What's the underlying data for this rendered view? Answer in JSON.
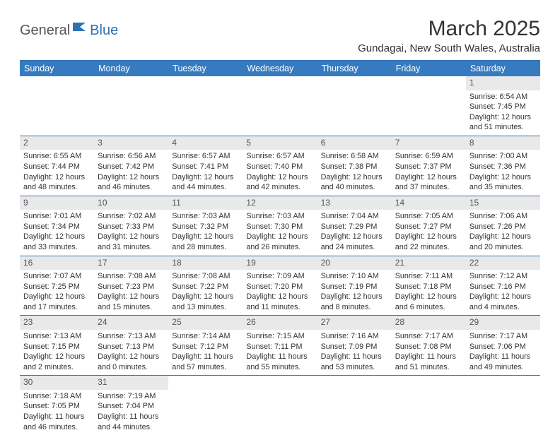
{
  "logo": {
    "general": "General",
    "blue": "Blue"
  },
  "title": "March 2025",
  "location": "Gundagai, New South Wales, Australia",
  "colors": {
    "header_bg": "#367bbf",
    "border": "#2d71b5",
    "daynum_bg": "#e9e9e9",
    "text": "#333333"
  },
  "daysOfWeek": [
    "Sunday",
    "Monday",
    "Tuesday",
    "Wednesday",
    "Thursday",
    "Friday",
    "Saturday"
  ],
  "weeks": [
    [
      null,
      null,
      null,
      null,
      null,
      null,
      {
        "n": "1",
        "sunrise": "Sunrise: 6:54 AM",
        "sunset": "Sunset: 7:45 PM",
        "day1": "Daylight: 12 hours",
        "day2": "and 51 minutes."
      }
    ],
    [
      {
        "n": "2",
        "sunrise": "Sunrise: 6:55 AM",
        "sunset": "Sunset: 7:44 PM",
        "day1": "Daylight: 12 hours",
        "day2": "and 48 minutes."
      },
      {
        "n": "3",
        "sunrise": "Sunrise: 6:56 AM",
        "sunset": "Sunset: 7:42 PM",
        "day1": "Daylight: 12 hours",
        "day2": "and 46 minutes."
      },
      {
        "n": "4",
        "sunrise": "Sunrise: 6:57 AM",
        "sunset": "Sunset: 7:41 PM",
        "day1": "Daylight: 12 hours",
        "day2": "and 44 minutes."
      },
      {
        "n": "5",
        "sunrise": "Sunrise: 6:57 AM",
        "sunset": "Sunset: 7:40 PM",
        "day1": "Daylight: 12 hours",
        "day2": "and 42 minutes."
      },
      {
        "n": "6",
        "sunrise": "Sunrise: 6:58 AM",
        "sunset": "Sunset: 7:38 PM",
        "day1": "Daylight: 12 hours",
        "day2": "and 40 minutes."
      },
      {
        "n": "7",
        "sunrise": "Sunrise: 6:59 AM",
        "sunset": "Sunset: 7:37 PM",
        "day1": "Daylight: 12 hours",
        "day2": "and 37 minutes."
      },
      {
        "n": "8",
        "sunrise": "Sunrise: 7:00 AM",
        "sunset": "Sunset: 7:36 PM",
        "day1": "Daylight: 12 hours",
        "day2": "and 35 minutes."
      }
    ],
    [
      {
        "n": "9",
        "sunrise": "Sunrise: 7:01 AM",
        "sunset": "Sunset: 7:34 PM",
        "day1": "Daylight: 12 hours",
        "day2": "and 33 minutes."
      },
      {
        "n": "10",
        "sunrise": "Sunrise: 7:02 AM",
        "sunset": "Sunset: 7:33 PM",
        "day1": "Daylight: 12 hours",
        "day2": "and 31 minutes."
      },
      {
        "n": "11",
        "sunrise": "Sunrise: 7:03 AM",
        "sunset": "Sunset: 7:32 PM",
        "day1": "Daylight: 12 hours",
        "day2": "and 28 minutes."
      },
      {
        "n": "12",
        "sunrise": "Sunrise: 7:03 AM",
        "sunset": "Sunset: 7:30 PM",
        "day1": "Daylight: 12 hours",
        "day2": "and 26 minutes."
      },
      {
        "n": "13",
        "sunrise": "Sunrise: 7:04 AM",
        "sunset": "Sunset: 7:29 PM",
        "day1": "Daylight: 12 hours",
        "day2": "and 24 minutes."
      },
      {
        "n": "14",
        "sunrise": "Sunrise: 7:05 AM",
        "sunset": "Sunset: 7:27 PM",
        "day1": "Daylight: 12 hours",
        "day2": "and 22 minutes."
      },
      {
        "n": "15",
        "sunrise": "Sunrise: 7:06 AM",
        "sunset": "Sunset: 7:26 PM",
        "day1": "Daylight: 12 hours",
        "day2": "and 20 minutes."
      }
    ],
    [
      {
        "n": "16",
        "sunrise": "Sunrise: 7:07 AM",
        "sunset": "Sunset: 7:25 PM",
        "day1": "Daylight: 12 hours",
        "day2": "and 17 minutes."
      },
      {
        "n": "17",
        "sunrise": "Sunrise: 7:08 AM",
        "sunset": "Sunset: 7:23 PM",
        "day1": "Daylight: 12 hours",
        "day2": "and 15 minutes."
      },
      {
        "n": "18",
        "sunrise": "Sunrise: 7:08 AM",
        "sunset": "Sunset: 7:22 PM",
        "day1": "Daylight: 12 hours",
        "day2": "and 13 minutes."
      },
      {
        "n": "19",
        "sunrise": "Sunrise: 7:09 AM",
        "sunset": "Sunset: 7:20 PM",
        "day1": "Daylight: 12 hours",
        "day2": "and 11 minutes."
      },
      {
        "n": "20",
        "sunrise": "Sunrise: 7:10 AM",
        "sunset": "Sunset: 7:19 PM",
        "day1": "Daylight: 12 hours",
        "day2": "and 8 minutes."
      },
      {
        "n": "21",
        "sunrise": "Sunrise: 7:11 AM",
        "sunset": "Sunset: 7:18 PM",
        "day1": "Daylight: 12 hours",
        "day2": "and 6 minutes."
      },
      {
        "n": "22",
        "sunrise": "Sunrise: 7:12 AM",
        "sunset": "Sunset: 7:16 PM",
        "day1": "Daylight: 12 hours",
        "day2": "and 4 minutes."
      }
    ],
    [
      {
        "n": "23",
        "sunrise": "Sunrise: 7:13 AM",
        "sunset": "Sunset: 7:15 PM",
        "day1": "Daylight: 12 hours",
        "day2": "and 2 minutes."
      },
      {
        "n": "24",
        "sunrise": "Sunrise: 7:13 AM",
        "sunset": "Sunset: 7:13 PM",
        "day1": "Daylight: 12 hours",
        "day2": "and 0 minutes."
      },
      {
        "n": "25",
        "sunrise": "Sunrise: 7:14 AM",
        "sunset": "Sunset: 7:12 PM",
        "day1": "Daylight: 11 hours",
        "day2": "and 57 minutes."
      },
      {
        "n": "26",
        "sunrise": "Sunrise: 7:15 AM",
        "sunset": "Sunset: 7:11 PM",
        "day1": "Daylight: 11 hours",
        "day2": "and 55 minutes."
      },
      {
        "n": "27",
        "sunrise": "Sunrise: 7:16 AM",
        "sunset": "Sunset: 7:09 PM",
        "day1": "Daylight: 11 hours",
        "day2": "and 53 minutes."
      },
      {
        "n": "28",
        "sunrise": "Sunrise: 7:17 AM",
        "sunset": "Sunset: 7:08 PM",
        "day1": "Daylight: 11 hours",
        "day2": "and 51 minutes."
      },
      {
        "n": "29",
        "sunrise": "Sunrise: 7:17 AM",
        "sunset": "Sunset: 7:06 PM",
        "day1": "Daylight: 11 hours",
        "day2": "and 49 minutes."
      }
    ],
    [
      {
        "n": "30",
        "sunrise": "Sunrise: 7:18 AM",
        "sunset": "Sunset: 7:05 PM",
        "day1": "Daylight: 11 hours",
        "day2": "and 46 minutes."
      },
      {
        "n": "31",
        "sunrise": "Sunrise: 7:19 AM",
        "sunset": "Sunset: 7:04 PM",
        "day1": "Daylight: 11 hours",
        "day2": "and 44 minutes."
      },
      null,
      null,
      null,
      null,
      null
    ]
  ]
}
